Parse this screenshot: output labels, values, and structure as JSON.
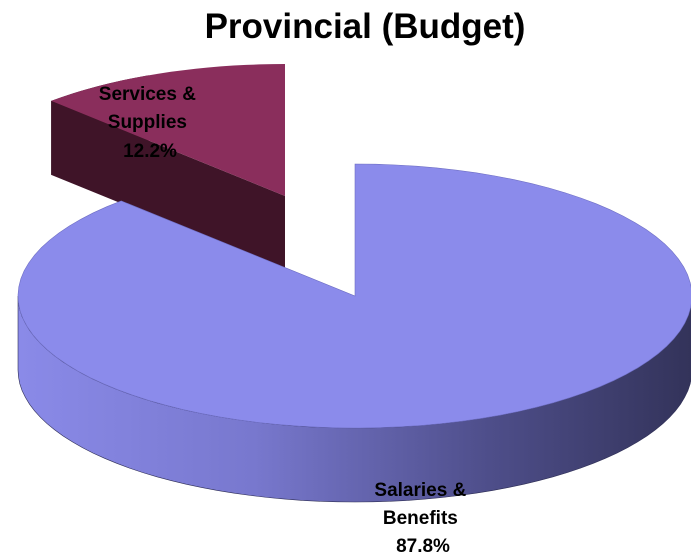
{
  "chart_data": {
    "type": "pie",
    "title": "Provincial (Budget)",
    "style": "3d-exploded",
    "slices": [
      {
        "label_lines": [
          "Services &",
          "Supplies"
        ],
        "value_text": "12.2%",
        "value": 12.2,
        "color": "#8A2E5C",
        "side_color": "#3F1428",
        "exploded": true
      },
      {
        "label_lines": [
          "Salaries &",
          "Benefits"
        ],
        "value_text": "87.8%",
        "value": 87.8,
        "color": "#8B8BEB",
        "side_color": "#3A3A68",
        "exploded": false
      }
    ]
  }
}
